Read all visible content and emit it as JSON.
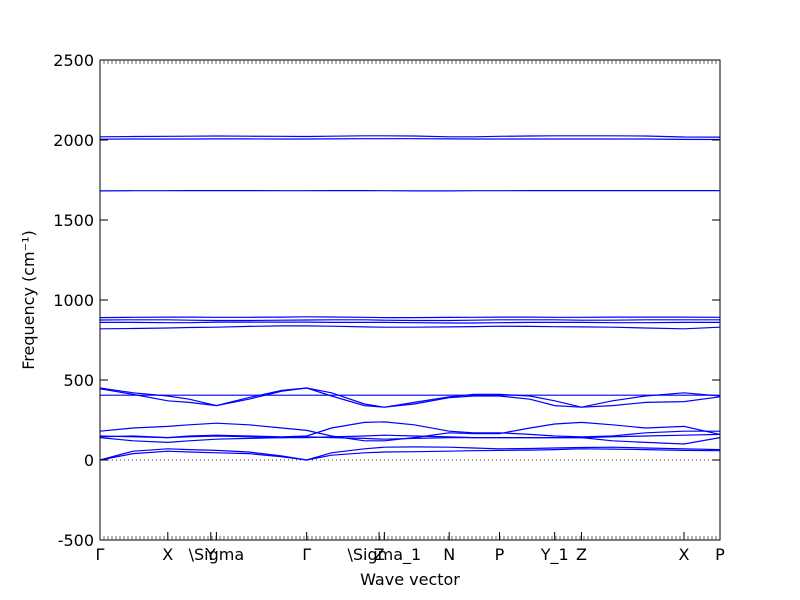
{
  "chart_data": {
    "type": "line",
    "title": "",
    "xlabel": "Wave vector",
    "ylabel": "Frequency (cm⁻¹)",
    "ylim": [
      -500,
      2500
    ],
    "yticks": [
      -500,
      0,
      500,
      1000,
      1500,
      2000,
      2500
    ],
    "grid": false,
    "legend": "none",
    "line_color": "#0000ff",
    "zero_line_color": "#000000",
    "kpoints": [
      {
        "label": "Γ",
        "x": 0
      },
      {
        "label": "X",
        "x": 0.205
      },
      {
        "label": "Y",
        "x": 0.335
      },
      {
        "label": "\\Sigma",
        "x": 0.352
      },
      {
        "label": "Γ",
        "x": 0.625
      },
      {
        "label": "Z",
        "x": 0.844
      },
      {
        "label": "\\Sigma_1",
        "x": 0.86
      },
      {
        "label": "N",
        "x": 1.056
      },
      {
        "label": "P",
        "x": 1.208
      },
      {
        "label": "Y_1",
        "x": 1.375
      },
      {
        "label": "Z",
        "x": 1.456
      },
      {
        "label": "X",
        "x": 1.766
      },
      {
        "label": "P",
        "x": 1.875
      }
    ],
    "x": [
      0,
      0.1,
      0.205,
      0.27,
      0.352,
      0.45,
      0.55,
      0.625,
      0.7,
      0.8,
      0.86,
      0.95,
      1.056,
      1.13,
      1.208,
      1.3,
      1.375,
      1.456,
      1.55,
      1.65,
      1.766,
      1.875
    ],
    "series": [
      {
        "values": [
          0,
          40,
          55,
          50,
          45,
          40,
          20,
          0,
          30,
          45,
          50,
          52,
          55,
          58,
          60,
          62,
          65,
          70,
          68,
          65,
          60,
          58
        ]
      },
      {
        "values": [
          0,
          55,
          70,
          65,
          60,
          50,
          25,
          0,
          45,
          70,
          80,
          82,
          80,
          75,
          70,
          72,
          75,
          78,
          80,
          75,
          70,
          65
        ]
      },
      {
        "values": [
          140,
          120,
          110,
          120,
          130,
          135,
          140,
          140,
          145,
          150,
          155,
          150,
          145,
          140,
          140,
          140,
          140,
          140,
          145,
          150,
          155,
          160
        ]
      },
      {
        "values": [
          145,
          150,
          140,
          145,
          150,
          145,
          140,
          145,
          140,
          135,
          130,
          135,
          140,
          140,
          140,
          140,
          140,
          140,
          120,
          110,
          100,
          140
        ]
      },
      {
        "values": [
          180,
          200,
          210,
          220,
          230,
          220,
          200,
          185,
          150,
          120,
          120,
          140,
          170,
          165,
          165,
          200,
          225,
          235,
          220,
          200,
          210,
          160
        ]
      },
      {
        "values": [
          150,
          145,
          140,
          150,
          155,
          150,
          145,
          150,
          200,
          235,
          238,
          220,
          180,
          170,
          170,
          160,
          150,
          145,
          150,
          170,
          180,
          180
        ]
      },
      {
        "values": [
          405,
          405,
          405,
          405,
          405,
          405,
          405,
          405,
          405,
          405,
          405,
          405,
          405,
          405,
          405,
          405,
          405,
          405,
          405,
          405,
          405,
          405
        ]
      },
      {
        "values": [
          450,
          420,
          400,
          380,
          340,
          380,
          430,
          450,
          420,
          350,
          330,
          350,
          390,
          400,
          400,
          380,
          340,
          330,
          370,
          400,
          420,
          400
        ]
      },
      {
        "values": [
          445,
          410,
          370,
          360,
          340,
          390,
          435,
          450,
          400,
          340,
          330,
          360,
          395,
          410,
          410,
          400,
          370,
          330,
          340,
          360,
          365,
          395
        ]
      },
      {
        "values": [
          820,
          822,
          825,
          828,
          830,
          835,
          838,
          838,
          836,
          832,
          830,
          830,
          832,
          834,
          836,
          835,
          833,
          832,
          830,
          825,
          820,
          830
        ]
      },
      {
        "values": [
          860,
          860,
          858,
          858,
          862,
          862,
          862,
          862,
          860,
          860,
          860,
          858,
          856,
          856,
          858,
          860,
          860,
          860,
          858,
          858,
          860,
          860
        ]
      },
      {
        "values": [
          875,
          876,
          876,
          874,
          872,
          872,
          874,
          875,
          876,
          876,
          874,
          872,
          872,
          874,
          876,
          876,
          876,
          874,
          874,
          876,
          876,
          876
        ]
      },
      {
        "values": [
          890,
          892,
          893,
          893,
          892,
          892,
          893,
          895,
          894,
          892,
          890,
          890,
          891,
          892,
          893,
          893,
          892,
          892,
          893,
          893,
          893,
          892
        ]
      },
      {
        "values": [
          1682,
          1683,
          1683,
          1684,
          1684,
          1684,
          1683,
          1683,
          1684,
          1684,
          1683,
          1682,
          1682,
          1683,
          1683,
          1684,
          1684,
          1684,
          1684,
          1684,
          1684,
          1684
        ]
      },
      {
        "values": [
          2005,
          2006,
          2006,
          2006,
          2007,
          2007,
          2006,
          2006,
          2007,
          2008,
          2008,
          2008,
          2007,
          2006,
          2006,
          2006,
          2006,
          2006,
          2006,
          2006,
          2004,
          2003
        ]
      },
      {
        "values": [
          2020,
          2022,
          2023,
          2024,
          2025,
          2024,
          2023,
          2022,
          2024,
          2026,
          2026,
          2025,
          2020,
          2020,
          2023,
          2025,
          2026,
          2026,
          2026,
          2025,
          2019,
          2018
        ]
      }
    ]
  }
}
